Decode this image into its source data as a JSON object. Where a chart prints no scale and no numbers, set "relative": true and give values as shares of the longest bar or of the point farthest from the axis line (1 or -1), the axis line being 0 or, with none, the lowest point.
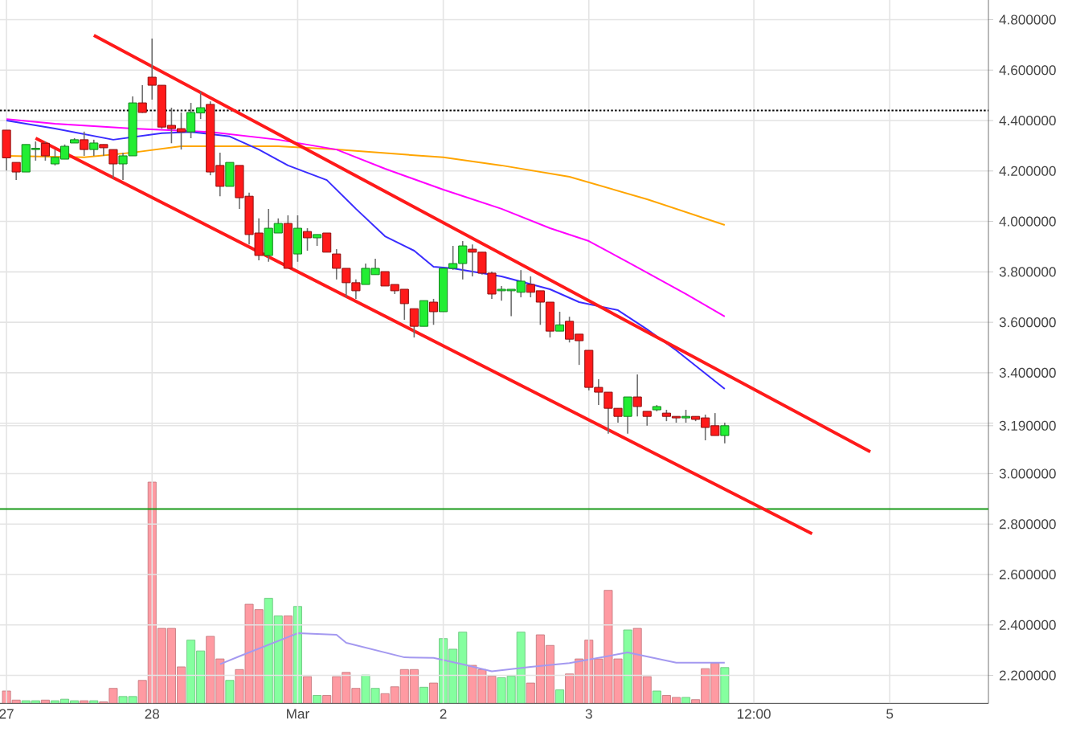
{
  "chart_data": [
    {
      "type": "candlestick",
      "categories": [
        "27",
        null,
        null,
        null,
        null,
        null,
        null,
        null,
        null,
        null,
        null,
        null,
        null,
        null,
        null,
        "28",
        null,
        null,
        null,
        null,
        null,
        null,
        null,
        null,
        null,
        null,
        null,
        null,
        null,
        null,
        "Mar",
        null,
        null,
        null,
        null,
        null,
        null,
        null,
        null,
        null,
        null,
        null,
        null,
        null,
        null,
        "2",
        null,
        null,
        null,
        null,
        null,
        null,
        null,
        null,
        null,
        null,
        null,
        null,
        null,
        null,
        "3",
        null,
        null,
        null,
        null,
        null,
        null,
        null,
        null,
        null,
        null,
        null,
        null,
        null,
        null,
        null,
        null,
        "12:00",
        null,
        null,
        null,
        null,
        null,
        null,
        null,
        null,
        null,
        null,
        null,
        null,
        null,
        "5",
        null,
        null,
        null,
        null,
        null,
        null,
        null,
        null,
        null,
        null
      ],
      "ohlc": [
        [
          4.362,
          4.362,
          4.202,
          4.252
        ],
        [
          4.234,
          4.234,
          4.164,
          4.196
        ],
        [
          4.196,
          4.305,
          4.196,
          4.305
        ],
        [
          4.285,
          4.317,
          4.241,
          4.29
        ],
        [
          4.31,
          4.317,
          4.241,
          4.26
        ],
        [
          4.228,
          4.285,
          4.222,
          4.254
        ],
        [
          4.247,
          4.305,
          4.247,
          4.298
        ],
        [
          4.311,
          4.33,
          4.311,
          4.324
        ],
        [
          4.324,
          4.356,
          4.26,
          4.285
        ],
        [
          4.285,
          4.324,
          4.26,
          4.311
        ],
        [
          4.305,
          4.305,
          4.26,
          4.292
        ],
        [
          4.285,
          4.285,
          4.171,
          4.228
        ],
        [
          4.228,
          4.273,
          4.164,
          4.26
        ],
        [
          4.26,
          4.496,
          4.26,
          4.47
        ],
        [
          4.47,
          4.54,
          4.43,
          4.432
        ],
        [
          4.572,
          4.725,
          4.483,
          4.54
        ],
        [
          4.54,
          4.54,
          4.368,
          4.374
        ],
        [
          4.381,
          4.451,
          4.31,
          4.368
        ],
        [
          4.368,
          4.432,
          4.285,
          4.355
        ],
        [
          4.355,
          4.47,
          4.33,
          4.432
        ],
        [
          4.43,
          4.515,
          4.406,
          4.451
        ],
        [
          4.464,
          4.476,
          4.183,
          4.196
        ],
        [
          4.222,
          4.273,
          4.1,
          4.139
        ],
        [
          4.139,
          4.234,
          4.139,
          4.234
        ],
        [
          4.222,
          4.222,
          4.05,
          4.094
        ],
        [
          4.1,
          4.114,
          3.909,
          3.948
        ],
        [
          3.954,
          4.012,
          3.846,
          3.865
        ],
        [
          3.865,
          4.05,
          3.84,
          3.973
        ],
        [
          3.954,
          4.012,
          3.954,
          3.992
        ],
        [
          3.992,
          4.024,
          3.814,
          3.814
        ],
        [
          3.871,
          4.024,
          3.84,
          3.973
        ],
        [
          3.96,
          3.973,
          3.884,
          3.935
        ],
        [
          3.935,
          3.948,
          3.903,
          3.948
        ],
        [
          3.954,
          3.954,
          3.878,
          3.878
        ],
        [
          3.871,
          3.89,
          3.77,
          3.814
        ],
        [
          3.814,
          3.814,
          3.699,
          3.757
        ],
        [
          3.757,
          3.77,
          3.693,
          3.725
        ],
        [
          3.75,
          3.833,
          3.75,
          3.814
        ],
        [
          3.789,
          3.852,
          3.789,
          3.814
        ],
        [
          3.801,
          3.801,
          3.744,
          3.744
        ],
        [
          3.75,
          3.75,
          3.712,
          3.725
        ],
        [
          3.731,
          3.731,
          3.61,
          3.674
        ],
        [
          3.654,
          3.654,
          3.54,
          3.584
        ],
        [
          3.584,
          3.686,
          3.584,
          3.686
        ],
        [
          3.68,
          3.693,
          3.59,
          3.642
        ],
        [
          3.642,
          3.814,
          3.642,
          3.814
        ],
        [
          3.814,
          3.903,
          3.808,
          3.833
        ],
        [
          3.833,
          3.922,
          3.77,
          3.903
        ],
        [
          3.89,
          3.909,
          3.782,
          3.878
        ],
        [
          3.878,
          3.878,
          3.789,
          3.795
        ],
        [
          3.795,
          3.801,
          3.693,
          3.712
        ],
        [
          3.725,
          3.744,
          3.686,
          3.731
        ],
        [
          3.725,
          3.731,
          3.624,
          3.731
        ],
        [
          3.719,
          3.807,
          3.699,
          3.763
        ],
        [
          3.75,
          3.782,
          3.699,
          3.719
        ],
        [
          3.725,
          3.725,
          3.59,
          3.68
        ],
        [
          3.68,
          3.68,
          3.54,
          3.565
        ],
        [
          3.565,
          3.642,
          3.565,
          3.59
        ],
        [
          3.604,
          3.622,
          3.52,
          3.533
        ],
        [
          3.553,
          3.553,
          3.431,
          3.527
        ],
        [
          3.489,
          3.489,
          3.33,
          3.342
        ],
        [
          3.342,
          3.374,
          3.272,
          3.323
        ],
        [
          3.323,
          3.323,
          3.158,
          3.259
        ],
        [
          3.259,
          3.259,
          3.202,
          3.227
        ],
        [
          3.227,
          3.304,
          3.158,
          3.304
        ],
        [
          3.304,
          3.393,
          3.227,
          3.266
        ],
        [
          3.247,
          3.247,
          3.19,
          3.227
        ],
        [
          3.253,
          3.272,
          3.247,
          3.266
        ],
        [
          3.24,
          3.253,
          3.208,
          3.227
        ],
        [
          3.227,
          3.227,
          3.202,
          3.221
        ],
        [
          3.221,
          3.253,
          3.202,
          3.227
        ],
        [
          3.227,
          3.227,
          3.208,
          3.215
        ],
        [
          3.221,
          3.234,
          3.132,
          3.183
        ],
        [
          3.19,
          3.24,
          3.151,
          3.151
        ],
        [
          3.151,
          3.202,
          3.12,
          3.19
        ],
        null,
        null,
        null,
        null,
        null,
        null,
        null,
        null,
        null,
        null,
        null,
        null,
        null,
        null,
        null,
        null,
        null,
        null,
        null,
        null,
        null,
        null,
        null,
        null,
        null,
        null,
        null
      ],
      "colors": [
        "#ff1a1a",
        "#ff1a1a",
        "#22ee33",
        "#22ee33",
        "#ff1a1a",
        "#22ee33",
        "#22ee33",
        "#22ee33",
        "#ff1a1a",
        "#22ee33",
        "#ff1a1a",
        "#ff1a1a",
        "#22ee33",
        "#22ee33",
        "#ff1a1a",
        "#ff1a1a",
        "#ff1a1a",
        "#ff1a1a",
        "#ff1a1a",
        "#22ee33",
        "#22ee33",
        "#ff1a1a",
        "#ff1a1a",
        "#22ee33",
        "#ff1a1a",
        "#ff1a1a",
        "#ff1a1a",
        "#22ee33",
        "#22ee33",
        "#ff1a1a",
        "#22ee33",
        "#ff1a1a",
        "#22ee33",
        "#ff1a1a",
        "#ff1a1a",
        "#ff1a1a",
        "#ff1a1a",
        "#22ee33",
        "#22ee33",
        "#ff1a1a",
        "#ff1a1a",
        "#ff1a1a",
        "#ff1a1a",
        "#22ee33",
        "#ff1a1a",
        "#22ee33",
        "#22ee33",
        "#22ee33",
        "#ff1a1a",
        "#ff1a1a",
        "#ff1a1a",
        "#22ee33",
        "#22ee33",
        "#22ee33",
        "#ff1a1a",
        "#ff1a1a",
        "#ff1a1a",
        "#22ee33",
        "#ff1a1a",
        "#ff1a1a",
        "#ff1a1a",
        "#ff1a1a",
        "#ff1a1a",
        "#ff1a1a",
        "#22ee33",
        "#ff1a1a",
        "#ff1a1a",
        "#22ee33",
        "#ff1a1a",
        "#ff1a1a",
        "#22ee33",
        "#ff1a1a",
        "#ff1a1a",
        "#ff1a1a",
        "#22ee33",
        null,
        null,
        null,
        null,
        null,
        null,
        null,
        null,
        null,
        null,
        null,
        null,
        null,
        null,
        null,
        null,
        null,
        null,
        null,
        null,
        null,
        null,
        null,
        null,
        null,
        null,
        null
      ],
      "series": [
        {
          "type": "line",
          "color": "#ffa500",
          "values": [
            4.26,
            null,
            null,
            null,
            null,
            null,
            null,
            null,
            4.254,
            null,
            null,
            null,
            null,
            4.273,
            null,
            null,
            null,
            null,
            4.298,
            null,
            null,
            null,
            null,
            null,
            null,
            null,
            null,
            null,
            4.298,
            null,
            null,
            null,
            null,
            null,
            4.285,
            null,
            null,
            null,
            null,
            null,
            null,
            null,
            null,
            null,
            null,
            4.254,
            null,
            null,
            null,
            null,
            null,
            4.222,
            null,
            null,
            null,
            null,
            null,
            null,
            4.177,
            null,
            null,
            null,
            null,
            null,
            null,
            null,
            4.088,
            null,
            null,
            null,
            null,
            null,
            null,
            null,
            3.986,
            null,
            null,
            null,
            null,
            null,
            null,
            null,
            null,
            null,
            null,
            null,
            null,
            null,
            null,
            null,
            null,
            null,
            null,
            null,
            null,
            null,
            null,
            null,
            null,
            null,
            null,
            null
          ]
        },
        {
          "type": "line",
          "color": "#ff00ff",
          "values": [
            4.406,
            null,
            null,
            null,
            null,
            4.387,
            null,
            null,
            null,
            null,
            null,
            null,
            null,
            4.368,
            null,
            null,
            null,
            null,
            null,
            null,
            null,
            4.355,
            null,
            null,
            null,
            null,
            null,
            null,
            4.324,
            null,
            null,
            null,
            null,
            null,
            4.285,
            null,
            null,
            null,
            null,
            4.209,
            null,
            null,
            null,
            null,
            null,
            4.126,
            null,
            null,
            null,
            null,
            null,
            4.05,
            null,
            null,
            null,
            null,
            3.973,
            null,
            null,
            null,
            3.922,
            null,
            null,
            null,
            3.839,
            null,
            null,
            null,
            null,
            null,
            3.712,
            null,
            null,
            null,
            3.623,
            null,
            null,
            null,
            null,
            null,
            null,
            null,
            null,
            null,
            null,
            null,
            null,
            null,
            null,
            null,
            null,
            null,
            null,
            null,
            null,
            null,
            null,
            null,
            null,
            null,
            null,
            null
          ]
        },
        {
          "type": "line",
          "color": "#3a2cff",
          "values": [
            4.4,
            null,
            null,
            null,
            null,
            4.368,
            null,
            null,
            null,
            null,
            null,
            4.324,
            null,
            null,
            null,
            null,
            4.35,
            null,
            null,
            4.355,
            null,
            null,
            null,
            4.337,
            null,
            null,
            4.285,
            null,
            null,
            4.222,
            null,
            null,
            null,
            4.164,
            null,
            null,
            4.05,
            null,
            null,
            3.941,
            null,
            null,
            3.884,
            null,
            3.82,
            null,
            3.814,
            null,
            null,
            null,
            null,
            3.782,
            null,
            null,
            null,
            null,
            3.731,
            null,
            null,
            3.68,
            null,
            null,
            null,
            3.648,
            null,
            null,
            3.572,
            null,
            null,
            3.489,
            null,
            null,
            null,
            null,
            3.336,
            null,
            null,
            null,
            null,
            null,
            null,
            null,
            null,
            null,
            null,
            null,
            null,
            null,
            null,
            null,
            null,
            null,
            null,
            null,
            null,
            null,
            null,
            null,
            null,
            null,
            null,
            null
          ]
        },
        {
          "type": "line",
          "color": "#ff1a1a",
          "values": [
            null,
            null,
            null,
            null,
            null,
            null,
            null,
            null,
            null,
            4.738,
            null,
            null,
            null,
            null,
            null,
            null,
            null,
            null,
            null,
            null,
            null,
            null,
            null,
            null,
            null,
            null,
            null,
            null,
            null,
            null,
            null,
            null,
            null,
            null,
            null,
            null,
            null,
            null,
            null,
            null,
            null,
            null,
            null,
            null,
            null,
            null,
            null,
            null,
            null,
            null,
            null,
            null,
            null,
            null,
            null,
            null,
            null,
            null,
            null,
            null,
            null,
            null,
            null,
            null,
            null,
            null,
            null,
            null,
            null,
            null,
            null,
            null,
            null,
            null,
            null,
            null,
            null,
            null,
            null,
            null,
            null,
            null,
            null,
            null,
            null,
            null,
            null,
            null,
            null,
            3.087,
            null,
            null,
            null,
            null,
            null,
            null,
            null,
            null,
            null,
            null,
            null,
            null
          ]
        },
        {
          "type": "line",
          "color": "#ff1a1a",
          "values": [
            null,
            null,
            null,
            4.33,
            null,
            null,
            null,
            null,
            null,
            null,
            null,
            null,
            null,
            null,
            null,
            null,
            null,
            null,
            null,
            null,
            null,
            null,
            null,
            null,
            null,
            null,
            null,
            null,
            null,
            null,
            null,
            null,
            null,
            null,
            null,
            null,
            null,
            null,
            null,
            null,
            null,
            null,
            null,
            null,
            null,
            null,
            null,
            null,
            null,
            null,
            null,
            null,
            null,
            null,
            null,
            null,
            null,
            null,
            null,
            null,
            null,
            null,
            null,
            null,
            null,
            null,
            null,
            null,
            null,
            null,
            null,
            null,
            null,
            null,
            null,
            null,
            null,
            null,
            null,
            null,
            null,
            null,
            null,
            2.762,
            null,
            null,
            null,
            null,
            null,
            null,
            null,
            null,
            null,
            null,
            null,
            null,
            null,
            null,
            null,
            null,
            null,
            null
          ]
        }
      ],
      "ylim": [
        2.089,
        4.878
      ],
      "yticks": [
        {
          "value": 4.8,
          "label": "4.800000"
        },
        {
          "value": 4.6,
          "label": "4.600000"
        },
        {
          "value": 4.4,
          "label": "4.400000"
        },
        {
          "value": 4.2,
          "label": "4.200000"
        },
        {
          "value": 4.0,
          "label": "4.000000"
        },
        {
          "value": 3.8,
          "label": "3.800000"
        },
        {
          "value": 3.6,
          "label": "3.600000"
        },
        {
          "value": 3.4,
          "label": "3.400000"
        },
        {
          "value": 3.2,
          "label": null
        },
        {
          "value": 3.19,
          "label": "3.190000"
        },
        {
          "value": 3.0,
          "label": "3.000000"
        },
        {
          "value": 2.8,
          "label": "2.800000"
        },
        {
          "value": 2.6,
          "label": "2.600000"
        },
        {
          "value": 2.4,
          "label": "2.400000"
        },
        {
          "value": 2.2,
          "label": "2.200000"
        }
      ],
      "grid": true,
      "ref_lines": [
        {
          "axis": "y",
          "value": 4.44,
          "color": "#000000",
          "line_style": "dotted"
        },
        {
          "axis": "y",
          "value": 2.86,
          "color": "#1a9a1a",
          "line_style": "solid"
        }
      ]
    },
    {
      "type": "bar",
      "relative": true,
      "categories": [
        null,
        null,
        null,
        null,
        null,
        null,
        null,
        null,
        null,
        null,
        null,
        null,
        null,
        null,
        null,
        null,
        null,
        null,
        null,
        null,
        null,
        null,
        null,
        null,
        null,
        null,
        null,
        null,
        null,
        null,
        null,
        null,
        null,
        null,
        null,
        null,
        null,
        null,
        null,
        null,
        null,
        null,
        null,
        null,
        null,
        null,
        null,
        null,
        null,
        null,
        null,
        null,
        null,
        null,
        null,
        null,
        null,
        null,
        null,
        null,
        null,
        null,
        null,
        null,
        null,
        null,
        null,
        null,
        null,
        null,
        null,
        null,
        null,
        null,
        null,
        null,
        null,
        null,
        null,
        null,
        null,
        null,
        null,
        null,
        null,
        null,
        null,
        null,
        null,
        null,
        null,
        null,
        null,
        null,
        null,
        null,
        null,
        null,
        null,
        null,
        null,
        null
      ],
      "series": [
        {
          "type": "bar",
          "values": [
            0.056,
            0.015,
            0.012,
            0.012,
            0.015,
            0.012,
            0.019,
            0.012,
            0.012,
            0.012,
            0.007,
            0.068,
            0.031,
            0.031,
            0.104,
            1,
            0.339,
            0.339,
            0.165,
            0.286,
            0.237,
            0.303,
            0.201,
            0.104,
            0.153,
            0.448,
            0.424,
            0.475,
            0.395,
            0.395,
            0.438,
            0.121,
            0.036,
            0.036,
            0.121,
            0.14,
            0.068,
            0.128,
            0.068,
            0.044,
            0.075,
            0.153,
            0.153,
            0.073,
            0.092,
            0.293,
            0.245,
            0.322,
            0.172,
            0.153,
            0.123,
            0.116,
            0.123,
            0.322,
            0.092,
            0.31,
            0.262,
            0.061,
            0.133,
            0.201,
            0.286,
            0.201,
            0.511,
            0.201,
            0.332,
            0.339,
            0.121,
            0.056,
            0.036,
            0.027,
            0.027,
            0.017,
            0.157,
            0.182,
            0.162,
            null,
            null,
            null,
            null,
            null,
            null,
            null,
            null,
            null,
            null,
            null,
            null,
            null,
            null,
            null,
            null,
            null,
            null,
            null,
            null,
            null,
            null,
            null,
            null,
            null,
            null,
            null
          ],
          "colors": [
            "#ff9aa2",
            "#ff9aa2",
            "#85ff9f",
            "#85ff9f",
            "#ff9aa2",
            "#85ff9f",
            "#85ff9f",
            "#85ff9f",
            "#ff9aa2",
            "#85ff9f",
            "#ff9aa2",
            "#ff9aa2",
            "#85ff9f",
            "#85ff9f",
            "#ff9aa2",
            "#ff9aa2",
            "#ff9aa2",
            "#ff9aa2",
            "#ff9aa2",
            "#85ff9f",
            "#85ff9f",
            "#ff9aa2",
            "#ff9aa2",
            "#85ff9f",
            "#ff9aa2",
            "#ff9aa2",
            "#ff9aa2",
            "#85ff9f",
            "#85ff9f",
            "#ff9aa2",
            "#85ff9f",
            "#ff9aa2",
            "#85ff9f",
            "#ff9aa2",
            "#ff9aa2",
            "#ff9aa2",
            "#ff9aa2",
            "#85ff9f",
            "#85ff9f",
            "#ff9aa2",
            "#ff9aa2",
            "#ff9aa2",
            "#ff9aa2",
            "#85ff9f",
            "#ff9aa2",
            "#85ff9f",
            "#85ff9f",
            "#85ff9f",
            "#ff9aa2",
            "#ff9aa2",
            "#ff9aa2",
            "#85ff9f",
            "#85ff9f",
            "#85ff9f",
            "#ff9aa2",
            "#ff9aa2",
            "#ff9aa2",
            "#85ff9f",
            "#ff9aa2",
            "#ff9aa2",
            "#ff9aa2",
            "#ff9aa2",
            "#ff9aa2",
            "#ff9aa2",
            "#85ff9f",
            "#ff9aa2",
            "#ff9aa2",
            "#85ff9f",
            "#ff9aa2",
            "#ff9aa2",
            "#85ff9f",
            "#ff9aa2",
            "#ff9aa2",
            "#ff9aa2",
            "#85ff9f",
            null,
            null,
            null,
            null,
            null,
            null,
            null,
            null,
            null,
            null,
            null,
            null,
            null,
            null,
            null,
            null,
            null,
            null,
            null,
            null,
            null,
            null,
            null,
            null,
            null,
            null,
            null
          ]
        },
        {
          "type": "line",
          "color": "#a499f0",
          "values": [
            null,
            null,
            null,
            null,
            null,
            null,
            null,
            null,
            null,
            null,
            null,
            null,
            null,
            null,
            null,
            null,
            null,
            null,
            null,
            null,
            null,
            null,
            0.177,
            null,
            0.213,
            null,
            null,
            null,
            null,
            null,
            0.317,
            null,
            null,
            null,
            0.31,
            0.274,
            null,
            null,
            null,
            null,
            null,
            0.208,
            null,
            null,
            0.206,
            null,
            null,
            0.177,
            null,
            null,
            0.145,
            null,
            null,
            null,
            0.165,
            null,
            null,
            null,
            0.182,
            null,
            null,
            null,
            null,
            null,
            0.23,
            null,
            null,
            null,
            null,
            0.184,
            null,
            null,
            null,
            null,
            0.184,
            null,
            null,
            null,
            null,
            null,
            null,
            null,
            null,
            null,
            null,
            null,
            null,
            null,
            null,
            null,
            null,
            null,
            null,
            null,
            null,
            null,
            null,
            null,
            null,
            null,
            null,
            null
          ]
        }
      ]
    }
  ]
}
